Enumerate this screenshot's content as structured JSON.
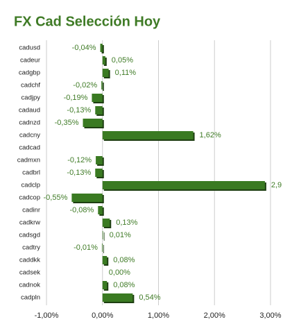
{
  "chart_data": {
    "type": "hbar",
    "title": "FX Cad Selección Hoy",
    "categories": [
      "cadusd",
      "cadeur",
      "cadgbp",
      "cadchf",
      "cadjpy",
      "cadaud",
      "cadnzd",
      "cadcny",
      "cadcad",
      "cadmxn",
      "cadbrl",
      "cadclp",
      "cadcop",
      "cadinr",
      "cadkrw",
      "cadsgd",
      "cadtry",
      "caddkk",
      "cadsek",
      "cadnok",
      "cadpln"
    ],
    "values": [
      -0.04,
      0.05,
      0.11,
      -0.02,
      -0.19,
      -0.13,
      -0.35,
      1.62,
      null,
      -0.12,
      -0.13,
      2.9,
      -0.55,
      -0.08,
      0.13,
      0.01,
      -0.01,
      0.08,
      0.0,
      0.08,
      0.54
    ],
    "value_labels": [
      "-0,04%",
      "0,05%",
      "0,11%",
      "-0,02%",
      "-0,19%",
      "-0,13%",
      "-0,35%",
      "1,62%",
      null,
      "-0,12%",
      "-0,13%",
      "2,9",
      "-0,55%",
      "-0,08%",
      "0,13%",
      "0,01%",
      "-0,01%",
      "0,08%",
      "0,00%",
      "0,08%",
      "0,54%"
    ],
    "color": "#3a7a22",
    "xlim": [
      -1.05,
      3.05
    ],
    "xticks": [
      {
        "value": -1,
        "label": "-1,00%"
      },
      {
        "value": 0,
        "label": "0,00%"
      },
      {
        "value": 1,
        "label": "1,00%"
      },
      {
        "value": 2,
        "label": "2,00%"
      },
      {
        "value": 3,
        "label": "3,00%"
      }
    ],
    "grid": true
  }
}
